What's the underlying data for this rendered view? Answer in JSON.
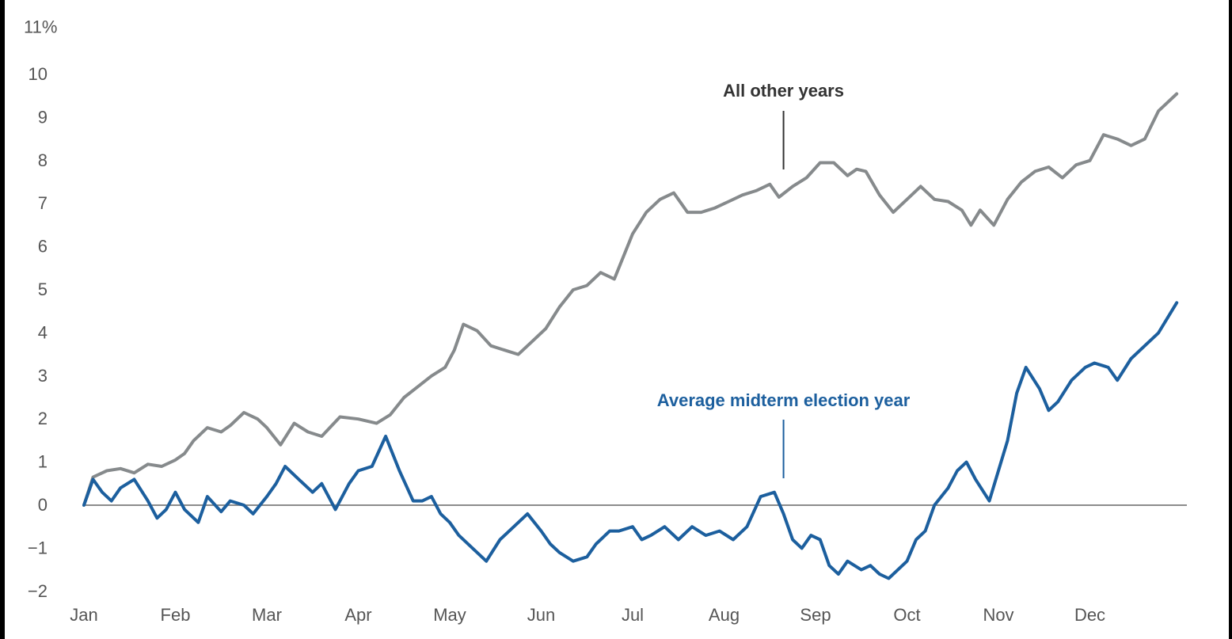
{
  "chart_data": {
    "type": "line",
    "title": "",
    "xlabel": "",
    "ylabel": "",
    "y_axis_top_label": "11%",
    "ylim": [
      -2,
      11
    ],
    "y_ticks": [
      "11%",
      "10",
      "9",
      "8",
      "7",
      "6",
      "5",
      "4",
      "3",
      "2",
      "1",
      "0",
      "−1",
      "−2"
    ],
    "y_tick_values": [
      11,
      10,
      9,
      8,
      7,
      6,
      5,
      4,
      3,
      2,
      1,
      0,
      -1,
      -2
    ],
    "x_ticks": [
      "Jan",
      "Feb",
      "Mar",
      "Apr",
      "May",
      "Jun",
      "Jul",
      "Aug",
      "Sep",
      "Oct",
      "Nov",
      "Dec"
    ],
    "x_tick_positions": [
      0,
      1,
      2,
      3,
      4,
      5,
      6,
      7,
      8,
      9,
      10,
      11
    ],
    "xlim": [
      0,
      12
    ],
    "grid": false,
    "zero_line": true,
    "legend": "none",
    "series": [
      {
        "name": "All other years",
        "color": "#868a8c",
        "x": [
          0,
          0.1,
          0.25,
          0.4,
          0.55,
          0.7,
          0.85,
          1.0,
          1.1,
          1.2,
          1.35,
          1.5,
          1.6,
          1.75,
          1.9,
          2.0,
          2.15,
          2.3,
          2.45,
          2.6,
          2.8,
          3.0,
          3.2,
          3.35,
          3.5,
          3.65,
          3.8,
          3.95,
          4.05,
          4.15,
          4.3,
          4.45,
          4.6,
          4.75,
          4.9,
          5.05,
          5.2,
          5.35,
          5.5,
          5.65,
          5.8,
          6.0,
          6.15,
          6.3,
          6.45,
          6.6,
          6.75,
          6.9,
          7.05,
          7.2,
          7.35,
          7.5,
          7.6,
          7.75,
          7.9,
          8.05,
          8.2,
          8.35,
          8.45,
          8.55,
          8.7,
          8.85,
          9.0,
          9.15,
          9.3,
          9.45,
          9.6,
          9.7,
          9.8,
          9.95,
          10.1,
          10.25,
          10.4,
          10.55,
          10.7,
          10.85,
          11.0,
          11.15,
          11.3,
          11.45,
          11.6,
          11.75,
          11.95
        ],
        "values": [
          0.0,
          0.65,
          0.8,
          0.85,
          0.75,
          0.95,
          0.9,
          1.05,
          1.2,
          1.5,
          1.8,
          1.7,
          1.85,
          2.15,
          2.0,
          1.8,
          1.4,
          1.9,
          1.7,
          1.6,
          2.05,
          2.0,
          1.9,
          2.1,
          2.5,
          2.75,
          3.0,
          3.2,
          3.6,
          4.2,
          4.05,
          3.7,
          3.6,
          3.5,
          3.8,
          4.1,
          4.6,
          5.0,
          5.1,
          5.4,
          5.25,
          6.3,
          6.8,
          7.1,
          7.25,
          6.8,
          6.8,
          6.9,
          7.05,
          7.2,
          7.3,
          7.45,
          7.15,
          7.4,
          7.6,
          7.95,
          7.95,
          7.65,
          7.8,
          7.75,
          7.2,
          6.8,
          7.1,
          7.4,
          7.1,
          7.05,
          6.85,
          6.5,
          6.85,
          6.5,
          7.1,
          7.5,
          7.75,
          7.85,
          7.6,
          7.9,
          8.0,
          8.6,
          8.5,
          8.35,
          8.5,
          9.15,
          9.55
        ]
      },
      {
        "name": "Average midterm election year",
        "color": "#1c5f9e",
        "x": [
          0,
          0.1,
          0.2,
          0.3,
          0.4,
          0.55,
          0.7,
          0.8,
          0.9,
          1.0,
          1.1,
          1.25,
          1.35,
          1.5,
          1.6,
          1.75,
          1.85,
          2.0,
          2.1,
          2.2,
          2.35,
          2.5,
          2.6,
          2.75,
          2.9,
          3.0,
          3.15,
          3.3,
          3.45,
          3.6,
          3.7,
          3.8,
          3.9,
          4.0,
          4.1,
          4.25,
          4.4,
          4.55,
          4.7,
          4.85,
          5.0,
          5.1,
          5.2,
          5.35,
          5.5,
          5.6,
          5.75,
          5.85,
          6.0,
          6.1,
          6.2,
          6.35,
          6.5,
          6.65,
          6.8,
          6.95,
          7.1,
          7.25,
          7.4,
          7.55,
          7.65,
          7.75,
          7.85,
          7.95,
          8.05,
          8.15,
          8.25,
          8.35,
          8.5,
          8.6,
          8.7,
          8.8,
          8.9,
          9.0,
          9.1,
          9.2,
          9.3,
          9.45,
          9.55,
          9.65,
          9.75,
          9.9,
          10.0,
          10.1,
          10.2,
          10.3,
          10.45,
          10.55,
          10.65,
          10.8,
          10.95,
          11.05,
          11.2,
          11.3,
          11.45,
          11.6,
          11.75,
          11.95
        ],
        "values": [
          0.0,
          0.6,
          0.3,
          0.1,
          0.4,
          0.6,
          0.1,
          -0.3,
          -0.1,
          0.3,
          -0.1,
          -0.4,
          0.2,
          -0.15,
          0.1,
          0.0,
          -0.2,
          0.2,
          0.5,
          0.9,
          0.6,
          0.3,
          0.5,
          -0.1,
          0.5,
          0.8,
          0.9,
          1.6,
          0.8,
          0.1,
          0.1,
          0.2,
          -0.2,
          -0.4,
          -0.7,
          -1.0,
          -1.3,
          -0.8,
          -0.5,
          -0.2,
          -0.6,
          -0.9,
          -1.1,
          -1.3,
          -1.2,
          -0.9,
          -0.6,
          -0.6,
          -0.5,
          -0.8,
          -0.7,
          -0.5,
          -0.8,
          -0.5,
          -0.7,
          -0.6,
          -0.8,
          -0.5,
          0.2,
          0.3,
          -0.2,
          -0.8,
          -1.0,
          -0.7,
          -0.8,
          -1.4,
          -1.6,
          -1.3,
          -1.5,
          -1.4,
          -1.6,
          -1.7,
          -1.5,
          -1.3,
          -0.8,
          -0.6,
          0.0,
          0.4,
          0.8,
          1.0,
          0.6,
          0.1,
          0.8,
          1.5,
          2.6,
          3.2,
          2.7,
          2.2,
          2.4,
          2.9,
          3.2,
          3.3,
          3.2,
          2.9,
          3.4,
          3.7,
          4.0,
          4.7
        ]
      }
    ],
    "annotations": [
      {
        "text": "All other years",
        "series": 0,
        "x": 7.65,
        "y": 7.8
      },
      {
        "text": "Average midterm election year",
        "series": 1,
        "x": 7.65,
        "y": 0.6
      }
    ]
  }
}
